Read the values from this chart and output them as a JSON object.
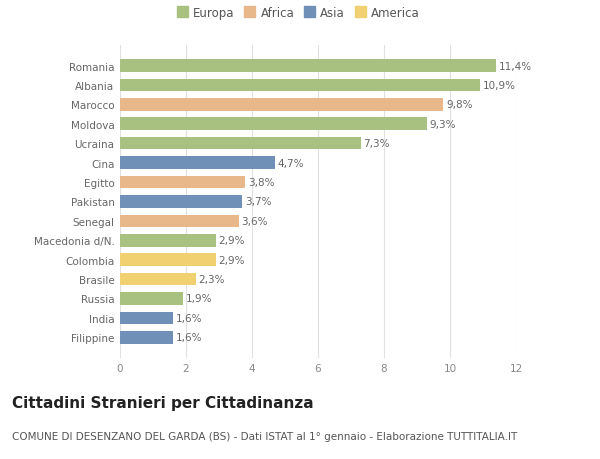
{
  "categories": [
    "Filippine",
    "India",
    "Russia",
    "Brasile",
    "Colombia",
    "Macedonia d/N.",
    "Senegal",
    "Pakistan",
    "Egitto",
    "Cina",
    "Ucraina",
    "Moldova",
    "Marocco",
    "Albania",
    "Romania"
  ],
  "values": [
    1.6,
    1.6,
    1.9,
    2.3,
    2.9,
    2.9,
    3.6,
    3.7,
    3.8,
    4.7,
    7.3,
    9.3,
    9.8,
    10.9,
    11.4
  ],
  "labels": [
    "1,6%",
    "1,6%",
    "1,9%",
    "2,3%",
    "2,9%",
    "2,9%",
    "3,6%",
    "3,7%",
    "3,8%",
    "4,7%",
    "7,3%",
    "9,3%",
    "9,8%",
    "10,9%",
    "11,4%"
  ],
  "continents": [
    "Asia",
    "Asia",
    "Europa",
    "America",
    "America",
    "Europa",
    "Africa",
    "Asia",
    "Africa",
    "Asia",
    "Europa",
    "Europa",
    "Africa",
    "Europa",
    "Europa"
  ],
  "colors": {
    "Europa": "#a8c080",
    "Africa": "#e8b88a",
    "Asia": "#7090b8",
    "America": "#f0d070"
  },
  "legend_labels": [
    "Europa",
    "Africa",
    "Asia",
    "America"
  ],
  "legend_colors": [
    "#a8c080",
    "#e8b88a",
    "#7090b8",
    "#f0d070"
  ],
  "title": "Cittadini Stranieri per Cittadinanza",
  "subtitle": "COMUNE DI DESENZANO DEL GARDA (BS) - Dati ISTAT al 1° gennaio - Elaborazione TUTTITALIA.IT",
  "xlim": [
    0,
    12
  ],
  "xticks": [
    0,
    2,
    4,
    6,
    8,
    10,
    12
  ],
  "background_color": "#ffffff",
  "grid_color": "#e0e0e0",
  "bar_height": 0.65,
  "title_fontsize": 11,
  "subtitle_fontsize": 7.5,
  "label_fontsize": 7.5,
  "tick_fontsize": 7.5,
  "legend_fontsize": 8.5
}
